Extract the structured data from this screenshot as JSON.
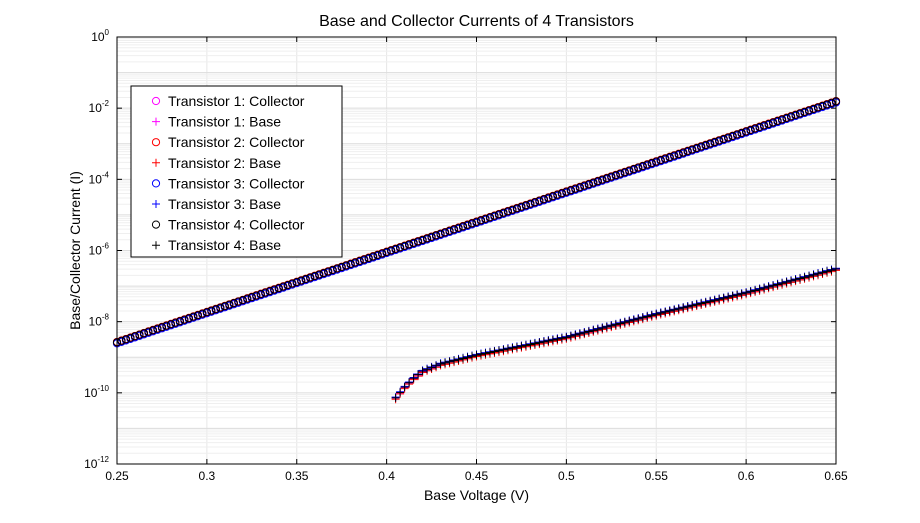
{
  "chart_data": {
    "type": "scatter",
    "title": "Base and Collector Currents of 4 Transistors",
    "xlabel": "Base Voltage (V)",
    "ylabel": "Base/Collector Current (I)",
    "xlim": [
      0.25,
      0.65
    ],
    "ylim": [
      1e-12,
      1
    ],
    "yscale": "log",
    "grid": true,
    "legend_position": "top-left",
    "xticks": [
      0.25,
      0.3,
      0.35,
      0.4,
      0.45,
      0.5,
      0.55,
      0.6,
      0.65
    ],
    "xtick_labels": [
      "0.25",
      "0.3",
      "0.35",
      "0.4",
      "0.45",
      "0.5",
      "0.55",
      "0.6",
      "0.65"
    ],
    "yticks": [
      {
        "value": 1,
        "base": "10",
        "exp": "0"
      },
      {
        "value": 0.01,
        "base": "10",
        "exp": "-2"
      },
      {
        "value": 0.0001,
        "base": "10",
        "exp": "-4"
      },
      {
        "value": 1e-06,
        "base": "10",
        "exp": "-6"
      },
      {
        "value": 1e-08,
        "base": "10",
        "exp": "-8"
      },
      {
        "value": 1e-10,
        "base": "10",
        "exp": "-10"
      },
      {
        "value": 1e-12,
        "base": "10",
        "exp": "-12"
      }
    ],
    "collector_model": {
      "v0": 0.25,
      "log10_i0": -8.59,
      "log10_i1": -1.82,
      "v1": 0.65,
      "step": 0.0025
    },
    "base_model": {
      "v_start": 0.405,
      "v_end": 0.65,
      "step": 0.0025
    },
    "base_knots": [
      [
        0.405,
        -10.15
      ],
      [
        0.41,
        -9.85
      ],
      [
        0.415,
        -9.6
      ],
      [
        0.42,
        -9.4
      ],
      [
        0.43,
        -9.2
      ],
      [
        0.45,
        -8.95
      ],
      [
        0.5,
        -8.45
      ],
      [
        0.55,
        -7.8
      ],
      [
        0.6,
        -7.2
      ],
      [
        0.65,
        -6.53
      ]
    ],
    "series": [
      {
        "name": "Transistor 1: Collector",
        "kind": "collector",
        "marker": "circle",
        "color": "#ff00ff",
        "offset": 0.0
      },
      {
        "name": "Transistor 1: Base",
        "kind": "base",
        "marker": "plus",
        "color": "#ff00ff",
        "offset": 0.0
      },
      {
        "name": "Transistor 2: Collector",
        "kind": "collector",
        "marker": "circle",
        "color": "#ff0000",
        "offset": 0.02
      },
      {
        "name": "Transistor 2: Base",
        "kind": "base",
        "marker": "plus",
        "color": "#ff0000",
        "offset": -0.03
      },
      {
        "name": "Transistor 3: Collector",
        "kind": "collector",
        "marker": "circle",
        "color": "#0000ff",
        "offset": -0.02
      },
      {
        "name": "Transistor 3: Base",
        "kind": "base",
        "marker": "plus",
        "color": "#0000ff",
        "offset": 0.03
      },
      {
        "name": "Transistor 4: Collector",
        "kind": "collector",
        "marker": "circle",
        "color": "#000000",
        "offset": 0.01
      },
      {
        "name": "Transistor 4: Base",
        "kind": "base",
        "marker": "plus",
        "color": "#000000",
        "offset": 0.01
      }
    ]
  }
}
